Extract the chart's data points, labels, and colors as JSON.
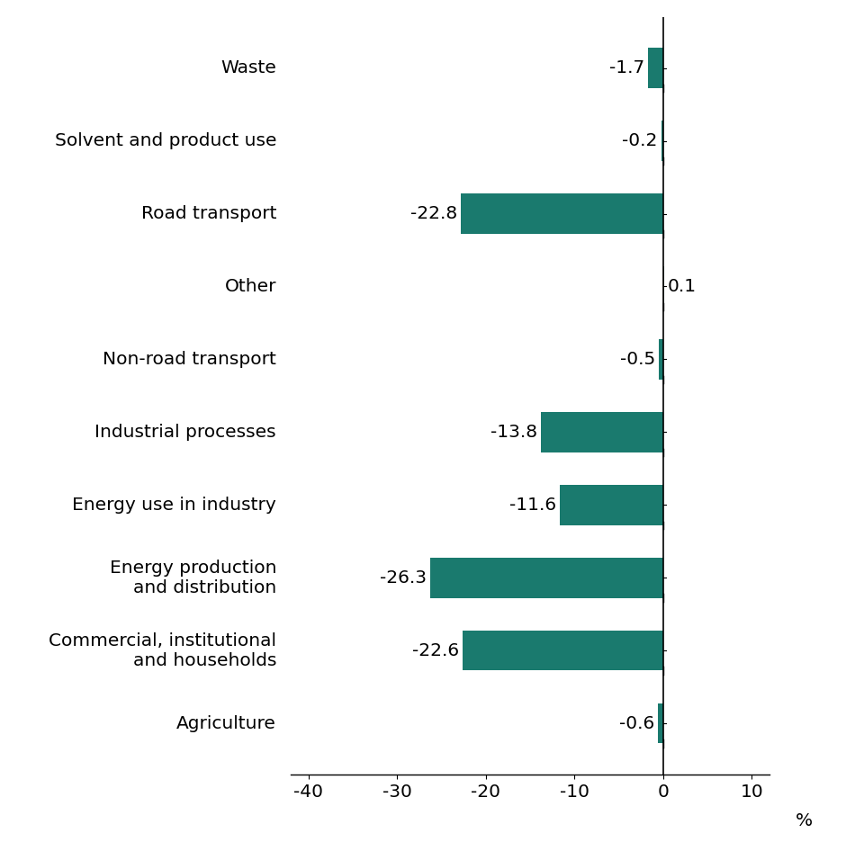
{
  "categories": [
    "Waste",
    "Solvent and product use",
    "Road transport",
    "Other",
    "Non-road transport",
    "Industrial processes",
    "Energy use in industry",
    "Energy production\nand distribution",
    "Commercial, institutional\nand households",
    "Agriculture"
  ],
  "values": [
    -1.7,
    -0.2,
    -22.8,
    0.1,
    -0.5,
    -13.8,
    -11.6,
    -26.3,
    -22.6,
    -0.6
  ],
  "bar_color": "#1a7a6e",
  "xlim": [
    -42,
    12
  ],
  "xticks": [
    -40,
    -30,
    -20,
    -10,
    0,
    10
  ],
  "xlabel": "%",
  "background_color": "#ffffff",
  "bar_height": 0.55,
  "label_fontsize": 14.5,
  "tick_fontsize": 14.5,
  "value_label_fontsize": 14.5
}
